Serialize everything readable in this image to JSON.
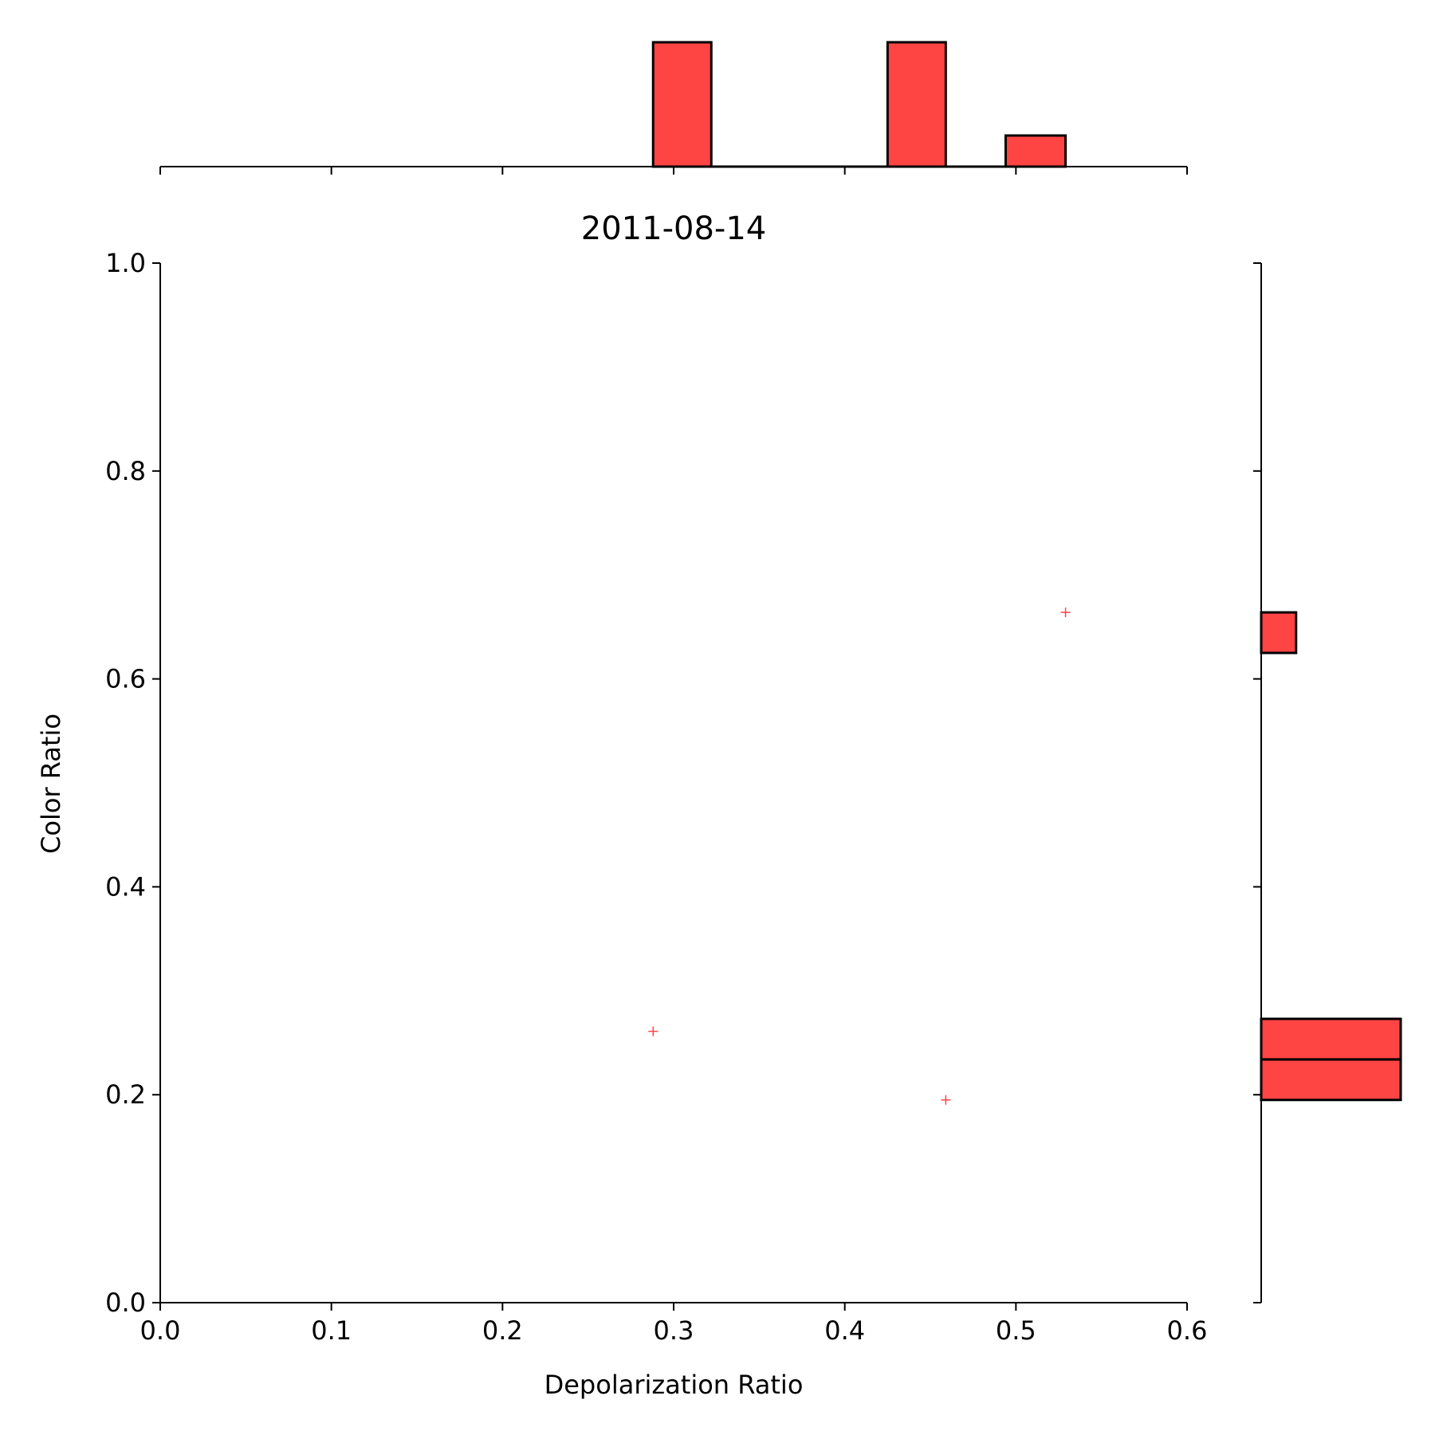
{
  "chart_data": {
    "type": "scatter",
    "title": "2011-08-14",
    "xlabel": "Depolarization Ratio",
    "ylabel": "Color Ratio",
    "xlim": [
      0.0,
      0.6
    ],
    "ylim": [
      0.0,
      1.0
    ],
    "xticks": [
      "0.0",
      "0.1",
      "0.2",
      "0.3",
      "0.4",
      "0.5",
      "0.6"
    ],
    "yticks": [
      "0.0",
      "0.2",
      "0.4",
      "0.6",
      "0.8",
      "1.0"
    ],
    "grid": false,
    "marker": "+",
    "color": "#ff4444",
    "edge_color": "#000000",
    "points": [
      {
        "x": 0.288,
        "y": 0.261
      },
      {
        "x": 0.459,
        "y": 0.195
      },
      {
        "x": 0.529,
        "y": 0.664
      }
    ],
    "x_histogram": {
      "bins": [
        {
          "x0": 0.288,
          "x1": 0.322,
          "count": 1.0
        },
        {
          "x0": 0.322,
          "x1": 0.356,
          "count": 0.0
        },
        {
          "x0": 0.356,
          "x1": 0.391,
          "count": 0.0
        },
        {
          "x0": 0.391,
          "x1": 0.425,
          "count": 0.0
        },
        {
          "x0": 0.425,
          "x1": 0.459,
          "count": 1.0
        },
        {
          "x0": 0.459,
          "x1": 0.494,
          "count": 0.0
        },
        {
          "x0": 0.494,
          "x1": 0.529,
          "count": 0.25
        }
      ]
    },
    "y_histogram": {
      "bins": [
        {
          "y0": 0.195,
          "y1": 0.234,
          "count": 1.0
        },
        {
          "y0": 0.234,
          "y1": 0.273,
          "count": 1.0
        },
        {
          "y0": 0.625,
          "y1": 0.664,
          "count": 0.25
        }
      ]
    }
  }
}
